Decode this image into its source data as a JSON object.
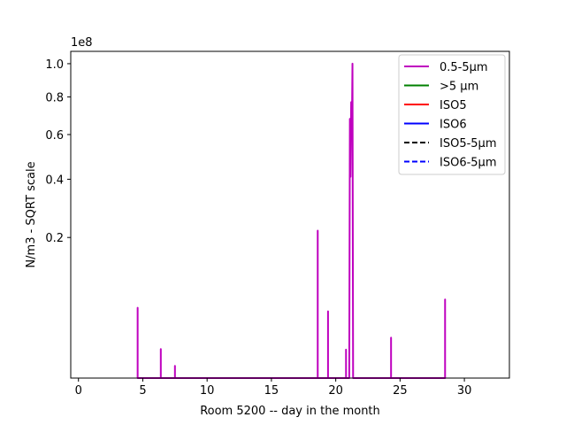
{
  "chart_data": {
    "type": "line",
    "xlabel": "Room 5200 -- day in the month",
    "ylabel": "N/m3 - SQRT scale",
    "y_scale": "sqrt",
    "y_offset_label": "1e8",
    "xlim": [
      -0.6,
      33.5
    ],
    "ylim": [
      0,
      1.08
    ],
    "x_ticks": [
      0,
      5,
      10,
      15,
      20,
      25,
      30
    ],
    "y_ticks": [
      0.2,
      0.4,
      0.6,
      0.8,
      1.0
    ],
    "y_tick_labels": [
      "0.2",
      "0.4",
      "0.6",
      "0.8",
      "1.0"
    ],
    "legend_position": "upper right",
    "colors": {
      "series_0": "#bf00bf",
      "series_1": "#008000",
      "series_2": "#ff0000",
      "series_3": "#0000ff",
      "series_4": "#000000",
      "series_5": "#0000ff",
      "axes": "#000000",
      "legend_border": "#cccccc"
    },
    "series": [
      {
        "name": "0.5-5µm",
        "style": "solid",
        "x": [
          4.6,
          4.6,
          4.6,
          6.4,
          6.4,
          6.4,
          7.5,
          7.5,
          7.5,
          18.6,
          18.6,
          18.6,
          19.4,
          19.4,
          19.4,
          20.8,
          20.8,
          20.8,
          21.05,
          21.1,
          21.15,
          21.2,
          21.25,
          21.3,
          21.35,
          24.3,
          24.3,
          24.3,
          28.5,
          28.5,
          28.5
        ],
        "y": [
          0,
          0.05,
          0,
          0,
          0.0085,
          0,
          0,
          0.0015,
          0,
          0,
          0.22,
          0,
          0,
          0.045,
          0,
          0,
          0.0082,
          0,
          0,
          0.68,
          0.41,
          0.77,
          0.58,
          1.0,
          0,
          0,
          0.0165,
          0,
          0,
          0.0625,
          0
        ]
      },
      {
        "name": ">5 µm",
        "style": "solid",
        "x": [],
        "y": []
      },
      {
        "name": "ISO5",
        "style": "solid",
        "x": [],
        "y": []
      },
      {
        "name": "ISO6",
        "style": "solid",
        "x": [],
        "y": []
      },
      {
        "name": "ISO5-5µm",
        "style": "dashed",
        "x": [],
        "y": []
      },
      {
        "name": "ISO6-5µm",
        "style": "dashed",
        "x": [],
        "y": []
      }
    ]
  }
}
